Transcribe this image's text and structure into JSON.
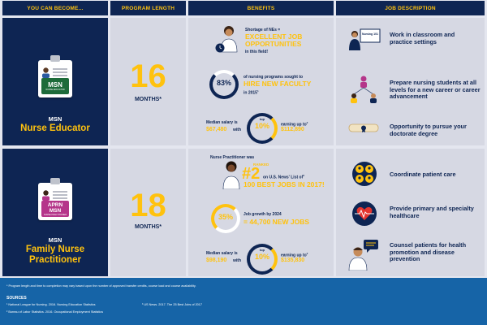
{
  "headers": {
    "col1": "YOU CAN BECOME...",
    "col2": "PROGRAM LENGTH",
    "col3": "BENEFITS",
    "col4": "JOB DESCRIPTION"
  },
  "educator": {
    "badge_main": "MSN",
    "badge_sub": "NURSE EDUCATOR",
    "degree": "MSN",
    "title": "Nurse Educator",
    "length_number": "16",
    "length_unit": "MONTHS*",
    "benefit1_pre": "Shortage of NEs =",
    "benefit1_highlight": "EXCELLENT JOB OPPORTUNITIES",
    "benefit1_post": "in this field!",
    "benefit2_percent": "83%",
    "benefit2_pre": "of nursing programs sought to",
    "benefit2_highlight": "HIRE NEW FACULTY",
    "benefit2_post": "in 2015",
    "benefit2_sup": "1",
    "salary_median_label": "Median salary is",
    "salary_median_value": "$67,480",
    "salary_with": "with",
    "salary_top_label": "top",
    "salary_top_percent": "10%",
    "salary_earning_label": "earning up to",
    "salary_earning_sup": "2",
    "salary_earning_value": "$112,890",
    "jobs": [
      "Work in classroom and practice settings",
      "Prepare nursing students at all levels for a new career or career advancement",
      "Opportunity to pursue your doctorate degree"
    ],
    "board_label": "Nursing 101"
  },
  "practitioner": {
    "badge_main": "APRN MSN",
    "badge_sub": "NURSE PRACTITIONER",
    "degree": "MSN",
    "title": "Family Nurse Practitioner",
    "length_number": "18",
    "length_unit": "MONTHS*",
    "benefit1_pre": "Nurse Practitioner was",
    "benefit1_ranked": "RANKED",
    "benefit1_rank": "#2",
    "benefit1_list": "on U.S. News' List of",
    "benefit1_list_sup": "3",
    "benefit1_highlight": "100 BEST JOBS IN 2017!",
    "benefit2_percent": "35%",
    "benefit2_pre": "Job growth by 2024",
    "benefit2_highlight": "= 44,700 NEW JOBS",
    "salary_median_label": "Median salary is",
    "salary_median_value": "$98,190",
    "salary_with": "with",
    "salary_top_label": "top",
    "salary_top_percent": "10%",
    "salary_earning_label": "earning up to",
    "salary_earning_sup": "2",
    "salary_earning_value": "$135,830",
    "jobs": [
      "Coordinate patient care",
      "Provide primary and specialty healthcare",
      "Counsel patients for health promotion and disease prevention"
    ]
  },
  "footer": {
    "note": "* Program length and time to completion may vary based upon the number of approved transfer credits, course load and course availability.",
    "sources_title": "SOURCES",
    "source1": "¹ National League for Nursing. 2016. Nursing Education Statistics",
    "source2": "² Bureau of Labor Statistics. 2016. Occupational Employment Statistics",
    "source3": "³ US News. 2017. The 25 Best Jobs of 2017"
  },
  "colors": {
    "navy": "#0e2553",
    "gold": "#ffc20e",
    "panel": "#d6d8e3",
    "footer_blue": "#1664a7",
    "educator_badge": "#1d6b3a",
    "practitioner_badge": "#b5358a"
  }
}
